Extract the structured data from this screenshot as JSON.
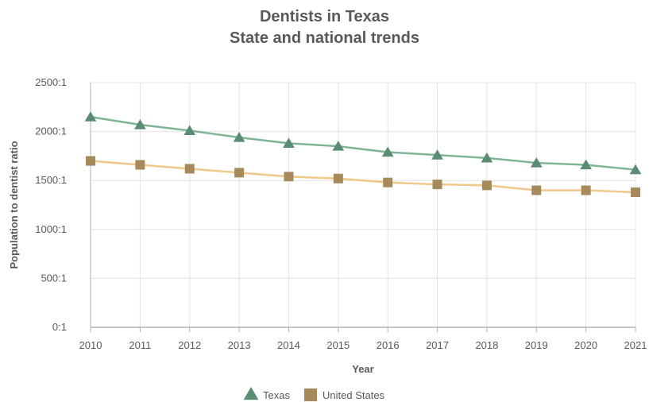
{
  "chart_data": {
    "type": "line",
    "title": "Dentists in Texas",
    "subtitle": "State and national trends",
    "xlabel": "Year",
    "ylabel": "Population to dentist ratio",
    "categories": [
      "2010",
      "2011",
      "2012",
      "2013",
      "2014",
      "2015",
      "2016",
      "2017",
      "2018",
      "2019",
      "2020",
      "2021"
    ],
    "ylim": [
      0,
      2500
    ],
    "yticks": [
      0,
      500,
      1000,
      1500,
      2000,
      2500
    ],
    "ytick_suffix": ":1",
    "grid": true,
    "legend": "bottom",
    "series": [
      {
        "name": "Texas",
        "color": "#5b8c72",
        "line_color": "#7fb597",
        "marker": "triangle",
        "values": [
          2150,
          2070,
          2010,
          1940,
          1880,
          1850,
          1790,
          1760,
          1730,
          1680,
          1660,
          1610
        ]
      },
      {
        "name": "United States",
        "color": "#a68a5b",
        "line_color": "#f0c98a",
        "marker": "square",
        "values": [
          1700,
          1660,
          1620,
          1580,
          1540,
          1520,
          1480,
          1460,
          1450,
          1400,
          1400,
          1380
        ]
      }
    ]
  }
}
